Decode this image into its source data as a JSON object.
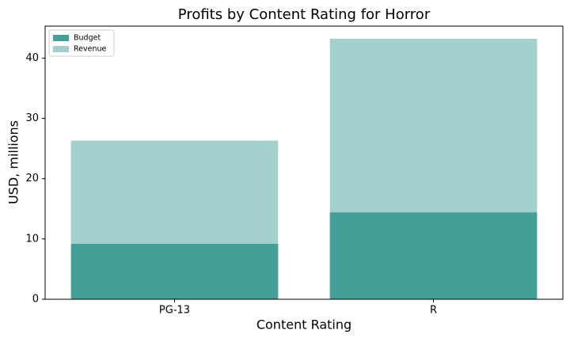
{
  "chart_data": {
    "type": "bar",
    "title": "Profits by Content Rating for Horror",
    "xlabel": "Content Rating",
    "ylabel": "USD, millions",
    "categories": [
      "PG-13",
      "R"
    ],
    "series": [
      {
        "name": "Budget",
        "color": "#469e98",
        "values": [
          9.2,
          14.4
        ]
      },
      {
        "name": "Revenue",
        "color": "#a3cfcc",
        "values": [
          26.3,
          43.2
        ]
      }
    ],
    "ylim": [
      0,
      45.3
    ],
    "yticks": [
      0,
      10,
      20,
      30,
      40
    ],
    "legend": "upper-left"
  }
}
